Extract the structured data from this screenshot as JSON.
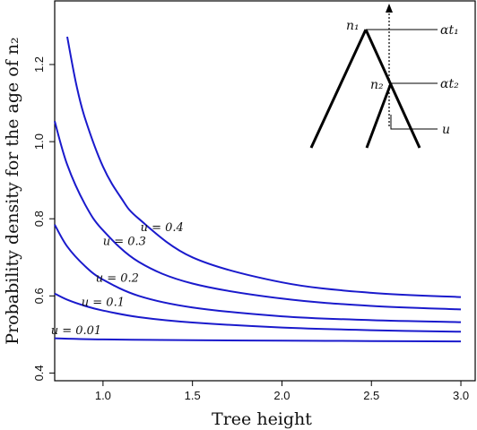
{
  "chart_data": {
    "type": "line",
    "xlabel": "Tree height",
    "ylabel": "Probability density for the age of n₂",
    "xlim": [
      0.73,
      3.08
    ],
    "ylim": [
      0.38,
      1.365
    ],
    "xticks": [
      1.0,
      1.5,
      2.0,
      2.5,
      3.0
    ],
    "xtick_labels": [
      "1.0",
      "1.5",
      "2.0",
      "2.5",
      "3.0"
    ],
    "yticks": [
      0.4,
      0.6,
      0.8,
      1.0,
      1.2
    ],
    "ytick_labels": [
      "0.4",
      "0.6",
      "0.8",
      "1.0",
      "1.2"
    ],
    "grid": false,
    "legend": "none",
    "series": [
      {
        "name": "u = 0.01",
        "label_at": 0.85,
        "x": [
          0.73,
          1.0,
          1.25,
          1.5,
          2.0,
          2.5,
          3.0
        ],
        "values": [
          0.49,
          0.487,
          0.486,
          0.485,
          0.484,
          0.483,
          0.482
        ]
      },
      {
        "name": "u = 0.1",
        "label_at": 1.0,
        "x": [
          0.73,
          0.8,
          0.9,
          1.0,
          1.2,
          1.5,
          2.0,
          2.5,
          3.0
        ],
        "values": [
          0.606,
          0.59,
          0.574,
          0.562,
          0.545,
          0.531,
          0.518,
          0.511,
          0.507
        ]
      },
      {
        "name": "u = 0.2",
        "label_at": 1.08,
        "x": [
          0.73,
          0.8,
          0.9,
          1.0,
          1.2,
          1.5,
          2.0,
          2.5,
          3.0
        ],
        "values": [
          0.785,
          0.728,
          0.677,
          0.642,
          0.6,
          0.57,
          0.547,
          0.537,
          0.532
        ]
      },
      {
        "name": "u = 0.3",
        "label_at": 1.12,
        "x": [
          0.73,
          0.8,
          0.9,
          1.0,
          1.2,
          1.5,
          2.0,
          2.5,
          3.0
        ],
        "values": [
          1.053,
          0.94,
          0.837,
          0.77,
          0.688,
          0.632,
          0.593,
          0.574,
          0.565
        ]
      },
      {
        "name": "u = 0.4",
        "label_at": 1.33,
        "x": [
          0.8,
          0.85,
          0.9,
          1.0,
          1.1,
          1.2,
          1.5,
          2.0,
          2.5,
          3.0
        ],
        "values": [
          1.272,
          1.15,
          1.06,
          0.935,
          0.855,
          0.8,
          0.7,
          0.635,
          0.608,
          0.597
        ]
      }
    ],
    "colors": {
      "series": "#1a1acc",
      "axes": "#000000"
    }
  },
  "inset": {
    "node1_label": "n₁",
    "node2_label": "n₂",
    "time1_label": "αt₁",
    "time2_label": "αt₂",
    "u_label": "u"
  }
}
